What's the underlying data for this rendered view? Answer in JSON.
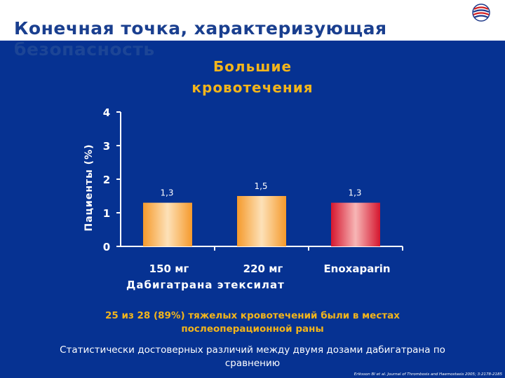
{
  "header": {
    "title_line1": "Конечная точка, характеризующая",
    "title_line2": "безопасность"
  },
  "colors": {
    "panel": "#063292",
    "accent_yellow": "#f3b51b",
    "title_blue": "#1a3f8f"
  },
  "chart_data": {
    "type": "bar",
    "title": "Большие кровотечения",
    "title_lines": [
      "Большие",
      "кровотечения"
    ],
    "ylabel": "Пациенты (%)",
    "xlabel": "Дабигатрана этексилат",
    "ylim": [
      0,
      4
    ],
    "yticks": [
      "0",
      "1",
      "2",
      "3",
      "4"
    ],
    "categories": [
      "150 мг",
      "220 мг",
      "Enoxaparin"
    ],
    "values": [
      1.3,
      1.5,
      1.3
    ],
    "value_labels": [
      "1,3",
      "1,5",
      "1,3"
    ],
    "bar_colors": [
      "orange",
      "orange",
      "red"
    ],
    "grid": false
  },
  "notes": {
    "highlight": "25 из 28 (89%) тяжелых кровотечений были в местах послеоперационной раны",
    "statement": "Статистически достоверных различий между двумя дозами дабигатрана по сравнению"
  },
  "reference": "Eriksson BI et al. Journal of Thrombosis and Haemostasis 2005; 3:2178-2185"
}
